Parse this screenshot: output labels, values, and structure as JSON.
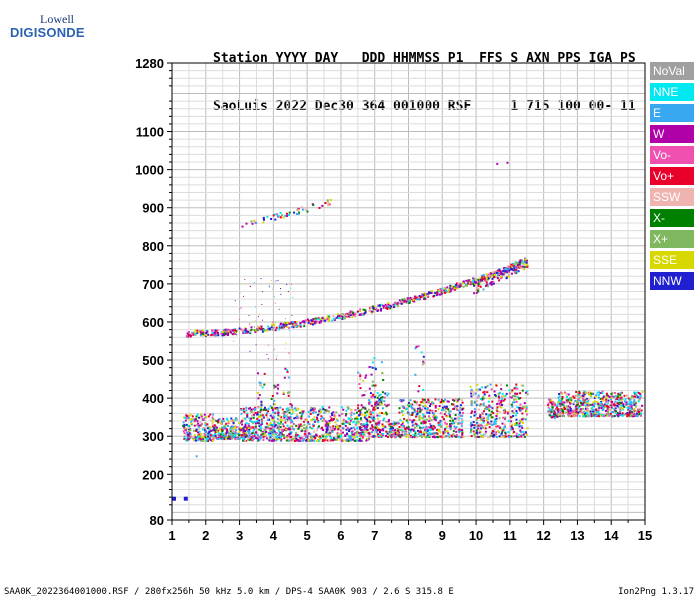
{
  "logo": {
    "line1": "Lowell",
    "line2": "DIGISONDE"
  },
  "header": {
    "labels": "Station YYYY DAY   DDD HHMMSS P1  FFS S AXN PPS IGA PS",
    "values": "SaoLuis 2022 Dec30 364 001000 RSF     1 715 100 00- 11"
  },
  "footer": {
    "left": "SAA0K_2022364001000.RSF / 280fx256h 50 kHz 5.0 km / DPS-4 SAA0K 903 / 2.6 S 315.8 E",
    "right": "Ion2Png 1.3.17"
  },
  "legend": [
    {
      "label": "NoVal",
      "color": "#a0a0a0"
    },
    {
      "label": "NNE",
      "color": "#00e8f0"
    },
    {
      "label": "E",
      "color": "#38a8f0"
    },
    {
      "label": "W",
      "color": "#b000a8"
    },
    {
      "label": "Vo-",
      "color": "#f050b0"
    },
    {
      "label": "Vo+",
      "color": "#e8002a"
    },
    {
      "label": "SSW",
      "color": "#f0b4b0"
    },
    {
      "label": "X-",
      "color": "#008000"
    },
    {
      "label": "X+",
      "color": "#80b860"
    },
    {
      "label": "SSE",
      "color": "#d8d800"
    },
    {
      "label": "NNW",
      "color": "#2020d0"
    }
  ],
  "chart_data": {
    "type": "scatter",
    "xlim": [
      1,
      15
    ],
    "ylim": [
      80,
      1280
    ],
    "x_ticks": [
      1,
      2,
      3,
      4,
      5,
      6,
      7,
      8,
      9,
      10,
      11,
      12,
      13,
      14,
      15
    ],
    "y_ticks": [
      80,
      200,
      300,
      400,
      500,
      600,
      700,
      800,
      900,
      1000,
      1100,
      1280
    ],
    "grid": true,
    "traces": [
      {
        "name": "F-layer O trace",
        "x_start": 1.4,
        "x_end": 11.5,
        "y_start": 572,
        "y_end": 760
      },
      {
        "name": "Second-hop trace",
        "x_start": 3.0,
        "x_end": 5.7,
        "y_start": 853,
        "y_end": 918
      },
      {
        "name": "Spread echoes",
        "x_start": 1.3,
        "x_end": 14.9,
        "y_min": 285,
        "y_max": 470
      }
    ],
    "isolated_points": [
      {
        "x": 1.0,
        "y": 136
      },
      {
        "x": 1.35,
        "y": 136
      },
      {
        "x": 10.6,
        "y": 1015
      },
      {
        "x": 10.9,
        "y": 1018
      }
    ]
  }
}
